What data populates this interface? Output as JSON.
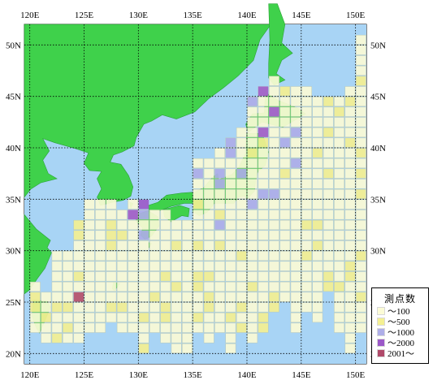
{
  "map": {
    "lon_labels": [
      "120E",
      "125E",
      "130E",
      "135E",
      "140E",
      "145E",
      "150E"
    ],
    "lat_labels": [
      "50N",
      "45N",
      "40N",
      "35N",
      "30N",
      "25N",
      "20N"
    ],
    "lon_range": [
      119.5,
      151
    ],
    "lat_range": [
      19,
      52
    ],
    "colors": {
      "sea": "#a8d4f5",
      "land": "#3fd14b",
      "grid": "#000000",
      "cell_edge": "#b9c7b3"
    }
  },
  "legend": {
    "title": "測点数",
    "items": [
      {
        "label": "～100",
        "color": "#fbfbd6"
      },
      {
        "label": "～500",
        "color": "#f4f092"
      },
      {
        "label": "～1000",
        "color": "#aeaee8"
      },
      {
        "label": "～2000",
        "color": "#9b58c8"
      },
      {
        "label": "2001～",
        "color": "#b04a6a"
      }
    ]
  }
}
